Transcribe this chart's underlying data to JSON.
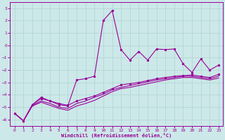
{
  "xlabel": "Windchill (Refroidissement éolien,°C)",
  "ylabel": "",
  "background_color": "#cce8e8",
  "grid_color": "#b0d4d4",
  "line_color": "#990099",
  "xlim": [
    -0.5,
    23.5
  ],
  "ylim": [
    -6.5,
    3.5
  ],
  "yticks": [
    3,
    2,
    1,
    0,
    -1,
    -2,
    -3,
    -4,
    -5,
    -6
  ],
  "xticks": [
    0,
    1,
    2,
    3,
    4,
    5,
    6,
    7,
    8,
    9,
    10,
    11,
    12,
    13,
    14,
    15,
    16,
    17,
    18,
    19,
    20,
    21,
    22,
    23
  ],
  "series1_x": [
    0,
    1,
    2,
    3,
    4,
    5,
    6,
    7,
    8,
    9,
    10,
    11,
    12,
    13,
    14,
    15,
    16,
    17,
    18,
    19,
    20,
    21,
    22,
    23
  ],
  "series1_y": [
    -5.5,
    -6.1,
    -4.8,
    -4.2,
    -4.5,
    -4.8,
    -4.9,
    -2.8,
    -2.7,
    -2.5,
    2.0,
    2.8,
    -0.35,
    -1.2,
    -0.5,
    -1.2,
    -0.3,
    -0.35,
    -0.3,
    -1.5,
    -2.2,
    -1.1,
    -2.0,
    -1.6
  ],
  "series2_x": [
    0,
    1,
    2,
    3,
    4,
    5,
    6,
    7,
    8,
    9,
    10,
    11,
    12,
    13,
    14,
    15,
    16,
    17,
    18,
    19,
    20,
    21,
    22,
    23
  ],
  "series2_y": [
    -5.5,
    -6.1,
    -4.8,
    -4.3,
    -4.5,
    -4.7,
    -4.85,
    -4.5,
    -4.3,
    -4.1,
    -3.8,
    -3.5,
    -3.2,
    -3.1,
    -3.0,
    -2.85,
    -2.7,
    -2.6,
    -2.5,
    -2.45,
    -2.4,
    -2.5,
    -2.6,
    -2.35
  ],
  "series3_x": [
    0,
    1,
    2,
    3,
    4,
    5,
    6,
    7,
    8,
    9,
    10,
    11,
    12,
    13,
    14,
    15,
    16,
    17,
    18,
    19,
    20,
    21,
    22,
    23
  ],
  "series3_y": [
    -5.5,
    -6.1,
    -4.85,
    -4.5,
    -4.7,
    -5.0,
    -5.1,
    -4.7,
    -4.5,
    -4.2,
    -3.95,
    -3.6,
    -3.4,
    -3.25,
    -3.1,
    -2.95,
    -2.8,
    -2.7,
    -2.6,
    -2.5,
    -2.5,
    -2.6,
    -2.7,
    -2.5
  ],
  "series4_x": [
    0,
    1,
    2,
    3,
    4,
    5,
    6,
    7,
    8,
    9,
    10,
    11,
    12,
    13,
    14,
    15,
    16,
    17,
    18,
    19,
    20,
    21,
    22,
    23
  ],
  "series4_y": [
    -5.5,
    -6.1,
    -4.9,
    -4.6,
    -4.85,
    -5.1,
    -5.25,
    -4.9,
    -4.7,
    -4.45,
    -4.1,
    -3.75,
    -3.5,
    -3.4,
    -3.25,
    -3.1,
    -2.95,
    -2.8,
    -2.7,
    -2.6,
    -2.6,
    -2.7,
    -2.8,
    -2.65
  ]
}
